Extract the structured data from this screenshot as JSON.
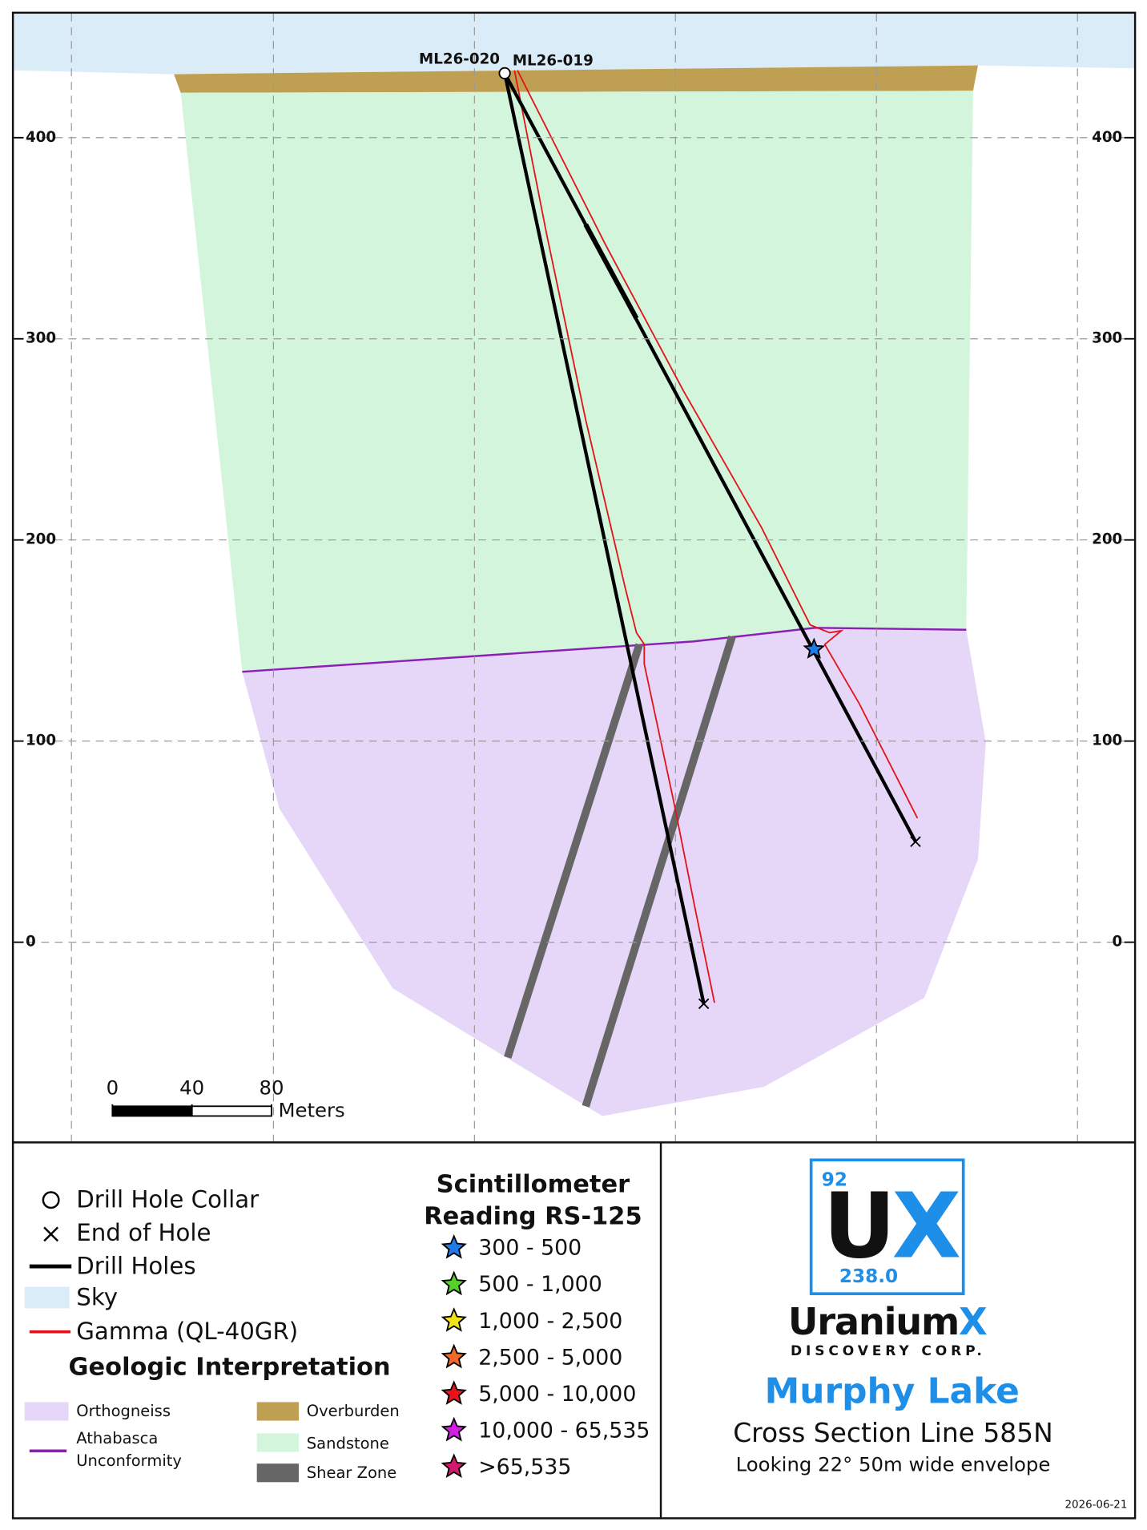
{
  "section": {
    "holes": [
      "ML26-020",
      "ML26-019"
    ],
    "elevation_ticks": [
      400,
      300,
      200,
      100,
      0
    ],
    "scale_bar": {
      "ticks": [
        0,
        40,
        80
      ],
      "unit": "Meters"
    }
  },
  "legend": {
    "items": [
      "Drill Hole Collar",
      "End of Hole",
      "Drill Holes",
      "Sky",
      "Gamma (QL-40GR)"
    ],
    "geology_title": "Geologic Interpretation",
    "geology": {
      "orthogneiss": "Orthogneiss",
      "unconformity": [
        "Athabasca",
        "Unconformity"
      ],
      "overburden": "Overburden",
      "sandstone": "Sandstone",
      "shear_zone": "Shear Zone"
    }
  },
  "scintillometer": {
    "title": [
      "Scintillometer",
      "Reading RS-125"
    ],
    "ranges": [
      "300 - 500",
      "500 - 1,000",
      "1,000 - 2,500",
      "2,500 - 5,000",
      "5,000 - 10,000",
      "10,000 - 65,535",
      ">65,535"
    ]
  },
  "logo": {
    "atomic_number": "92",
    "symbol": [
      "U",
      "X"
    ],
    "atomic_mass": "238.0",
    "name": [
      "Uranium",
      "X"
    ],
    "subtitle": "DISCOVERY CORP."
  },
  "title": {
    "project": "Murphy Lake",
    "section": "Cross Section Line 585N",
    "note": "Looking 22° 50m wide envelope"
  },
  "date": "2026-06-21"
}
